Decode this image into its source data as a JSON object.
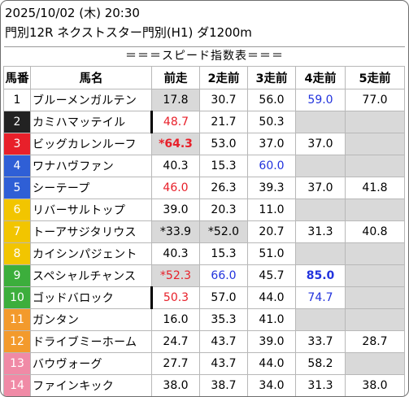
{
  "header": {
    "datetime": "2025/10/02 (木) 20:30",
    "race": "門別12R ネクストスター門別(H1) ダ1200m"
  },
  "banner": "＝＝＝スピード指数表＝＝＝",
  "columns": [
    "馬番",
    "馬名",
    "前走",
    "2走前",
    "3走前",
    "4走前",
    "5走前"
  ],
  "horses": [
    {
      "no": "1",
      "name": "ブルーメンガルテン",
      "bg": "#ffffff",
      "fg": "#000000",
      "c": [
        {
          "v": "17.8",
          "shade": true
        },
        {
          "v": "30.7"
        },
        {
          "v": "56.0"
        },
        {
          "v": "59.0",
          "color": "blue"
        },
        {
          "v": "77.0"
        }
      ]
    },
    {
      "no": "2",
      "name": "カミハマッテイル",
      "bg": "#222222",
      "fg": "#ffffff",
      "bar": true,
      "c": [
        {
          "v": "48.7",
          "color": "red"
        },
        {
          "v": "21.7"
        },
        {
          "v": "50.3"
        },
        {
          "v": "",
          "shade": true
        },
        {
          "v": "",
          "shade": true
        }
      ]
    },
    {
      "no": "3",
      "name": "ビッグカレンルーフ",
      "bg": "#e8202a",
      "fg": "#ffffff",
      "c": [
        {
          "v": "*64.3",
          "color": "red",
          "bold": true,
          "shade": true
        },
        {
          "v": "53.0"
        },
        {
          "v": "37.0"
        },
        {
          "v": "37.0"
        },
        {
          "v": "",
          "shade": true
        }
      ]
    },
    {
      "no": "4",
      "name": "ワナハヴファン",
      "bg": "#2f5fd6",
      "fg": "#ffffff",
      "c": [
        {
          "v": "40.3"
        },
        {
          "v": "15.3"
        },
        {
          "v": "60.0",
          "color": "blue"
        },
        {
          "v": "",
          "shade": true
        },
        {
          "v": "",
          "shade": true
        }
      ]
    },
    {
      "no": "5",
      "name": "シーテープ",
      "bg": "#2f5fd6",
      "fg": "#ffffff",
      "c": [
        {
          "v": "46.0",
          "color": "red"
        },
        {
          "v": "26.3"
        },
        {
          "v": "39.3"
        },
        {
          "v": "37.0"
        },
        {
          "v": "41.8"
        }
      ]
    },
    {
      "no": "6",
      "name": "リバーサルトップ",
      "bg": "#f2c500",
      "fg": "#ffffff",
      "c": [
        {
          "v": "39.0"
        },
        {
          "v": "20.3"
        },
        {
          "v": "11.0"
        },
        {
          "v": "",
          "shade": true
        },
        {
          "v": "",
          "shade": true
        }
      ]
    },
    {
      "no": "7",
      "name": "トーアサジタリウス",
      "bg": "#f2c500",
      "fg": "#ffffff",
      "c": [
        {
          "v": "*33.9",
          "shade": true
        },
        {
          "v": "*52.0",
          "shade": true
        },
        {
          "v": "20.7"
        },
        {
          "v": "31.3"
        },
        {
          "v": "40.8"
        }
      ]
    },
    {
      "no": "8",
      "name": "カイシンパジェント",
      "bg": "#f2c500",
      "fg": "#ffffff",
      "c": [
        {
          "v": "40.3"
        },
        {
          "v": "15.3"
        },
        {
          "v": "51.0"
        },
        {
          "v": "",
          "shade": true
        },
        {
          "v": "",
          "shade": true
        }
      ]
    },
    {
      "no": "9",
      "name": "スペシャルチャンス",
      "bg": "#3cae3c",
      "fg": "#ffffff",
      "c": [
        {
          "v": "*52.3",
          "color": "red",
          "shade": true
        },
        {
          "v": "66.0",
          "color": "blue"
        },
        {
          "v": "45.7"
        },
        {
          "v": "85.0",
          "color": "blue",
          "bold": true
        },
        {
          "v": "",
          "shade": true
        }
      ]
    },
    {
      "no": "10",
      "name": "ゴッドバロック",
      "bg": "#3cae3c",
      "fg": "#ffffff",
      "bar": true,
      "c": [
        {
          "v": "50.3",
          "color": "red"
        },
        {
          "v": "57.0"
        },
        {
          "v": "44.0"
        },
        {
          "v": "74.7",
          "color": "blue"
        },
        {
          "v": "",
          "shade": true
        }
      ]
    },
    {
      "no": "11",
      "name": "ガンタン",
      "bg": "#f39a2c",
      "fg": "#ffffff",
      "c": [
        {
          "v": "16.0"
        },
        {
          "v": "35.3"
        },
        {
          "v": "41.0"
        },
        {
          "v": "",
          "shade": true
        },
        {
          "v": "",
          "shade": true
        }
      ]
    },
    {
      "no": "12",
      "name": "ドライブミーホーム",
      "bg": "#f39a2c",
      "fg": "#ffffff",
      "c": [
        {
          "v": "24.7"
        },
        {
          "v": "43.7"
        },
        {
          "v": "39.0"
        },
        {
          "v": "33.7"
        },
        {
          "v": "28.7"
        }
      ]
    },
    {
      "no": "13",
      "name": "バウヴォーグ",
      "bg": "#f08aa6",
      "fg": "#ffffff",
      "c": [
        {
          "v": "27.7"
        },
        {
          "v": "43.7"
        },
        {
          "v": "44.0"
        },
        {
          "v": "58.2"
        },
        {
          "v": "",
          "shade": true
        }
      ]
    },
    {
      "no": "14",
      "name": "ファインキック",
      "bg": "#f08aa6",
      "fg": "#ffffff",
      "c": [
        {
          "v": "38.0"
        },
        {
          "v": "38.7"
        },
        {
          "v": "34.0"
        },
        {
          "v": "31.3"
        },
        {
          "v": "38.0"
        }
      ]
    }
  ]
}
